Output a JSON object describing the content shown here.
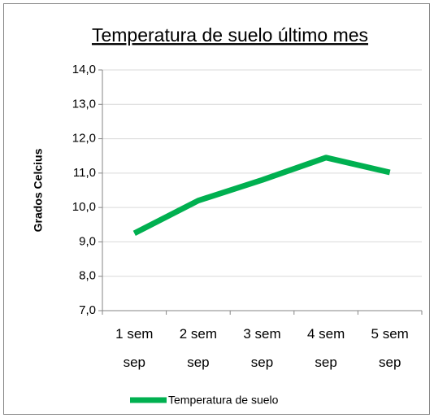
{
  "chart_data": {
    "type": "line",
    "title": "Temperatura de suelo último mes",
    "y_label": "Grados Celcius",
    "categories": [
      "1 sem sep",
      "2 sem sep",
      "3 sem sep",
      "4 sem sep",
      "5 sem sep"
    ],
    "series": [
      {
        "name": "Temperatura de suelo",
        "color": "#00b050",
        "values": [
          9.25,
          10.2,
          10.8,
          11.45,
          11.02
        ]
      }
    ],
    "ylim": [
      7,
      14
    ],
    "yticks": [
      {
        "value": 7,
        "label": "7,0"
      },
      {
        "value": 8,
        "label": "8,0"
      },
      {
        "value": 9,
        "label": "9,0"
      },
      {
        "value": 10,
        "label": "10,0"
      },
      {
        "value": 11,
        "label": "11,0"
      },
      {
        "value": 12,
        "label": "12,0"
      },
      {
        "value": 13,
        "label": "13,0"
      },
      {
        "value": 14,
        "label": "14,0"
      }
    ],
    "grid": true,
    "legend": "bottom"
  }
}
